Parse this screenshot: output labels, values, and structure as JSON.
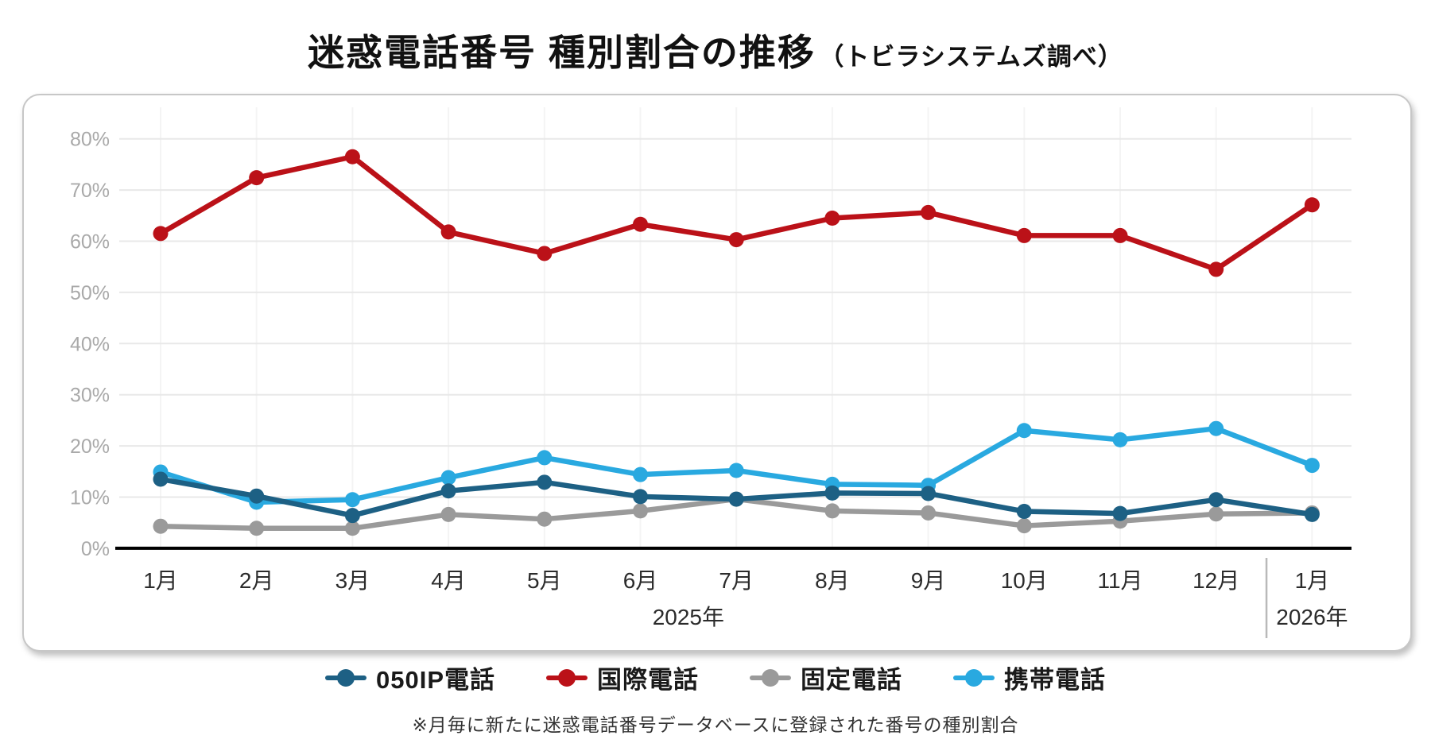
{
  "title": {
    "main": "迷惑電話番号 種別割合の推移",
    "sub": "（トビラシステムズ調べ）"
  },
  "footnote": "※月毎に新たに迷惑電話番号データベースに登録された番号の種別割合",
  "legend": {
    "items": [
      {
        "label": "050IP電話",
        "color": "#1d6084"
      },
      {
        "label": "国際電話",
        "color": "#bb1118"
      },
      {
        "label": "固定電話",
        "color": "#9a9a9a"
      },
      {
        "label": "携帯電話",
        "color": "#29a9e0"
      }
    ]
  },
  "chart_data": {
    "type": "line",
    "title": "迷惑電話番号 種別割合の推移（トビラシステムズ調べ）",
    "categories": [
      "1月",
      "2月",
      "3月",
      "4月",
      "5月",
      "6月",
      "7月",
      "8月",
      "9月",
      "10月",
      "11月",
      "12月",
      "1月"
    ],
    "year_labels": {
      "left": "2025年",
      "right": "2026年"
    },
    "y_tick_labels": [
      "0%",
      "10%",
      "20%",
      "30%",
      "40%",
      "50%",
      "60%",
      "70%",
      "80%"
    ],
    "ylim": [
      0,
      80
    ],
    "grid": "horizontal light gray, faint vertical at each month",
    "legend_position": "bottom",
    "series": [
      {
        "name": "固定電話",
        "color": "#9a9a9a",
        "values": [
          4.3,
          3.9,
          3.9,
          6.6,
          5.7,
          7.3,
          9.6,
          7.3,
          6.9,
          4.4,
          5.3,
          6.7,
          6.9
        ]
      },
      {
        "name": "携帯電話",
        "color": "#29a9e0",
        "values": [
          14.9,
          9.0,
          9.5,
          13.8,
          17.7,
          14.4,
          15.2,
          12.5,
          12.3,
          23.0,
          21.2,
          23.4,
          16.2
        ]
      },
      {
        "name": "050IP電話",
        "color": "#1d6084",
        "values": [
          13.5,
          10.2,
          6.4,
          11.2,
          12.9,
          10.1,
          9.6,
          10.8,
          10.7,
          7.2,
          6.8,
          9.5,
          6.6
        ]
      },
      {
        "name": "国際電話",
        "color": "#bb1118",
        "values": [
          61.5,
          72.4,
          76.5,
          61.8,
          57.6,
          63.3,
          60.3,
          64.5,
          65.6,
          61.1,
          61.1,
          54.5,
          67.1
        ]
      }
    ]
  }
}
